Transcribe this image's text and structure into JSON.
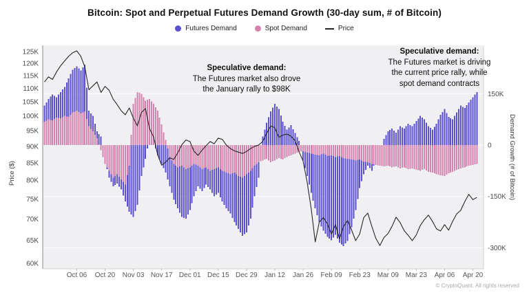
{
  "chart_data": {
    "type": "bar",
    "title": "Bitcoin: Spot and Perpetual Futures Demand Growth (30-day sum, # of Bitcoin)",
    "footer": "© CryptoQuant. All rights reserved",
    "plot_bg": "#f0eff2",
    "x_range": {
      "start_label": "Sep 20",
      "end_label": "Apr 22",
      "points": 108,
      "step_days": 2
    },
    "x_ticks": {
      "labels": [
        "Oct 06",
        "Oct 20",
        "Nov 03",
        "Nov 17",
        "Dec 01",
        "Dec 15",
        "Dec 29",
        "Jan 12",
        "Jan 26",
        "Feb 09",
        "Feb 23",
        "Mar 09",
        "Mar 23",
        "Apr 06",
        "Apr 20"
      ],
      "days": [
        16,
        30,
        44,
        58,
        72,
        86,
        100,
        114,
        128,
        142,
        156,
        170,
        184,
        198,
        212
      ]
    },
    "left_axis": {
      "label": "Price ($)",
      "scale": "log",
      "tick_labels": [
        "125K",
        "120K",
        "115K",
        "110K",
        "105K",
        "100K",
        "95K",
        "90K",
        "85K",
        "80K",
        "75K",
        "70K",
        "65K",
        "60K"
      ],
      "tick_values": [
        125,
        120,
        115,
        110,
        105,
        100,
        95,
        90,
        85,
        80,
        75,
        70,
        65,
        60
      ],
      "unit": "K USD"
    },
    "right_axis": {
      "label": "Demand Growth (# of Bitcoin)",
      "scale": "linear",
      "tick_labels": [
        "150K",
        "0",
        "-150K",
        "-300K"
      ],
      "tick_values": [
        150,
        0,
        -150,
        -300
      ],
      "range_k": [
        -360,
        290
      ],
      "unit": "K BTC"
    },
    "series": [
      {
        "name": "Futures Demand",
        "type": "bar",
        "axis": "right",
        "color": "#5a50d0",
        "unit": "K BTC",
        "values": [
          115,
          135,
          148,
          140,
          155,
          170,
          195,
          220,
          230,
          218,
          235,
          100,
          85,
          40,
          25,
          -45,
          -95,
          -120,
          -112,
          -130,
          -165,
          -195,
          -210,
          -175,
          -90,
          -40,
          20,
          10,
          -30,
          -55,
          -80,
          -120,
          -160,
          -185,
          -210,
          -215,
          -190,
          -150,
          -120,
          -135,
          -115,
          -130,
          -150,
          -140,
          -165,
          -185,
          -200,
          -225,
          -245,
          -265,
          -255,
          -215,
          -150,
          -95,
          25,
          65,
          98,
          120,
          105,
          68,
          45,
          58,
          35,
          12,
          -45,
          -90,
          -140,
          -185,
          -225,
          -250,
          -268,
          -278,
          -262,
          -285,
          -295,
          -280,
          -240,
          -190,
          -125,
          -85,
          -60,
          -75,
          -45,
          -25,
          18,
          40,
          48,
          36,
          55,
          48,
          62,
          55,
          70,
          85,
          75,
          55,
          45,
          62,
          88,
          105,
          82,
          75,
          95,
          115,
          108,
          125,
          140,
          155
        ]
      },
      {
        "name": "Spot Demand",
        "type": "bar",
        "axis": "right",
        "color": "#d383b0",
        "unit": "K BTC",
        "values": [
          68,
          75,
          72,
          80,
          78,
          85,
          82,
          95,
          100,
          92,
          98,
          55,
          40,
          20,
          -15,
          -55,
          -75,
          -95,
          -85,
          -100,
          -115,
          -60,
          120,
          155,
          150,
          130,
          135,
          120,
          100,
          60,
          15,
          -35,
          -55,
          -65,
          -60,
          -70,
          -65,
          -55,
          -60,
          -70,
          -65,
          -75,
          -70,
          -65,
          -75,
          -80,
          -85,
          -80,
          -90,
          -95,
          -85,
          -75,
          -60,
          -50,
          -45,
          -40,
          -50,
          -45,
          -38,
          -42,
          -35,
          -30,
          -25,
          -20,
          -18,
          -22,
          -25,
          -28,
          -30,
          -25,
          -32,
          -30,
          -35,
          -32,
          -38,
          -40,
          -42,
          -45,
          -42,
          -48,
          -50,
          -55,
          -58,
          -60,
          -62,
          -60,
          -65,
          -62,
          -68,
          -65,
          -70,
          -68,
          -72,
          -75,
          -70,
          -78,
          -80,
          -85,
          -88,
          -90,
          -82,
          -78,
          -72,
          -68,
          -65,
          -60,
          -58,
          -55
        ]
      },
      {
        "name": "Price",
        "type": "line",
        "axis": "left",
        "color": "#262626",
        "unit": "K USD",
        "values": [
          112.5,
          114.5,
          113.5,
          116.5,
          119,
          121,
          123,
          124.5,
          125.3,
          123,
          118.5,
          109.5,
          111,
          112.5,
          108.5,
          110.8,
          109.3,
          106,
          104,
          101.8,
          100.4,
          102.8,
          99.2,
          96.6,
          101.2,
          102.6,
          95.7,
          93,
          87.5,
          84.3,
          85.2,
          86.5,
          86,
          88,
          90.5,
          92,
          91.5,
          88.5,
          87.2,
          88.8,
          90.2,
          91.5,
          90.8,
          92.6,
          92.2,
          90.4,
          89.3,
          88.6,
          88.2,
          87.8,
          88.4,
          89.3,
          90,
          90.4,
          91.5,
          94.2,
          96.6,
          96,
          92.8,
          93.6,
          93.9,
          93.2,
          91.8,
          88.3,
          85.5,
          79.5,
          72.5,
          64.6,
          69.2,
          70.3,
          68.8,
          66.4,
          68.6,
          65.3,
          68.2,
          69.6,
          67.3,
          64.9,
          66.4,
          70.3,
          71.4,
          68.2,
          65.4,
          63.8,
          65.6,
          66.5,
          68.2,
          70.4,
          69.1,
          67.2,
          66.1,
          64.9,
          66.2,
          68.4,
          69.8,
          70.9,
          69.4,
          67.6,
          67.1,
          68.6,
          67.3,
          69.4,
          71.2,
          72.1,
          74.3,
          76.2,
          74.8,
          75.4
        ]
      }
    ],
    "annotations": [
      {
        "title": "Speculative demand:",
        "lines": [
          "The Futures market also drove",
          "the January rally to $98K"
        ]
      },
      {
        "title": "Speculative demand:",
        "lines": [
          "The Futures market is driving",
          "the current price rally, while",
          "spot demand contracts"
        ]
      }
    ]
  }
}
